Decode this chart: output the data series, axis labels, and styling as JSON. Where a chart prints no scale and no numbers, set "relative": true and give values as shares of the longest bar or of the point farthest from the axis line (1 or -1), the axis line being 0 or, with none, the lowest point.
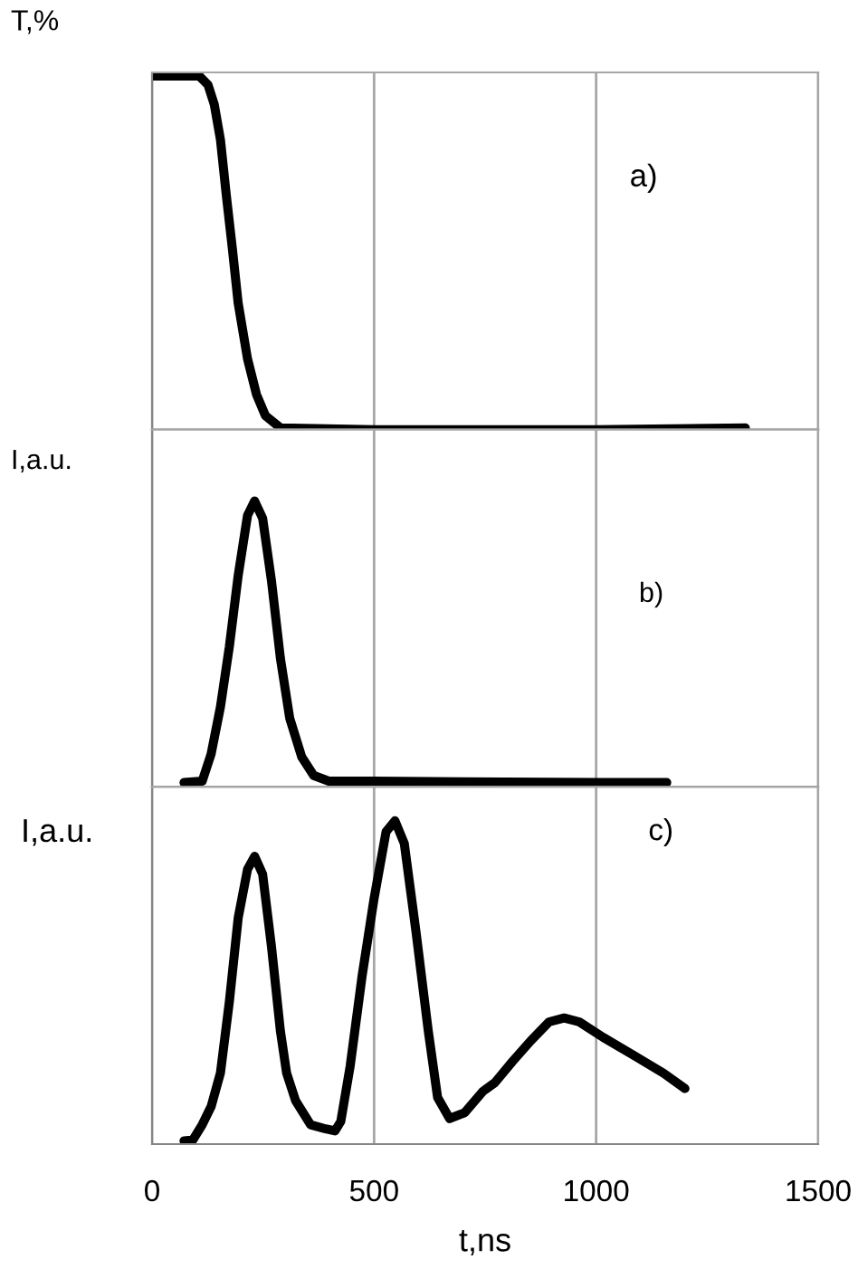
{
  "chart_data": [
    {
      "type": "line",
      "ylabel": "T,%",
      "annotations": [
        "a)"
      ],
      "relative": true,
      "xlim": [
        0,
        1500
      ],
      "xticks": [
        0,
        500,
        1000,
        1500
      ],
      "grid": "x",
      "tick_labels": false,
      "x": [
        0,
        65,
        106,
        126,
        140,
        154,
        167,
        181,
        194,
        215,
        235,
        255,
        289,
        500,
        1000,
        1336
      ],
      "series": [
        {
          "color": "#000000",
          "values": [
            1,
            1,
            1,
            0.975,
            0.92,
            0.82,
            0.665,
            0.51,
            0.357,
            0.2,
            0.1,
            0.04,
            0.005,
            0,
            0,
            0.005
          ]
        }
      ]
    },
    {
      "type": "line",
      "ylabel": "I,a.u.",
      "annotations": [
        "b)"
      ],
      "relative": true,
      "xlim": [
        0,
        1500
      ],
      "xticks": [
        0,
        500,
        1000,
        1500
      ],
      "grid": "x",
      "tick_labels": false,
      "x": [
        72,
        113,
        133,
        154,
        174,
        194,
        215,
        231,
        249,
        269,
        289,
        310,
        337,
        364,
        398,
        500,
        1000,
        1159
      ],
      "series": [
        {
          "color": "#000000",
          "values": [
            0.015,
            0.02,
            0.115,
            0.28,
            0.49,
            0.74,
            0.95,
            1,
            0.94,
            0.72,
            0.45,
            0.24,
            0.105,
            0.04,
            0.02,
            0.02,
            0.015,
            0.015
          ]
        }
      ]
    },
    {
      "type": "line",
      "ylabel": "I,a.u.",
      "xlabel": "t,ns",
      "annotations": [
        "c)"
      ],
      "relative": true,
      "xlim": [
        0,
        1500
      ],
      "xticks": [
        0,
        500,
        1000,
        1500
      ],
      "grid": "x",
      "tick_labels": "x",
      "x": [
        72,
        92,
        113,
        133,
        154,
        174,
        194,
        215,
        231,
        249,
        269,
        289,
        303,
        323,
        357,
        391,
        412,
        425,
        446,
        473,
        500,
        527,
        547,
        568,
        595,
        622,
        643,
        670,
        704,
        745,
        772,
        812,
        853,
        894,
        928,
        962,
        1016,
        1084,
        1152,
        1200
      ],
      "series": [
        {
          "color": "#000000",
          "values": [
            0.01,
            0.013,
            0.06,
            0.116,
            0.22,
            0.44,
            0.7,
            0.85,
            0.89,
            0.835,
            0.61,
            0.35,
            0.22,
            0.135,
            0.06,
            0.047,
            0.041,
            0.07,
            0.24,
            0.52,
            0.76,
            0.966,
            1,
            0.93,
            0.65,
            0.35,
            0.144,
            0.079,
            0.097,
            0.163,
            0.19,
            0.256,
            0.32,
            0.378,
            0.39,
            0.378,
            0.33,
            0.275,
            0.219,
            0.172
          ]
        }
      ]
    }
  ]
}
